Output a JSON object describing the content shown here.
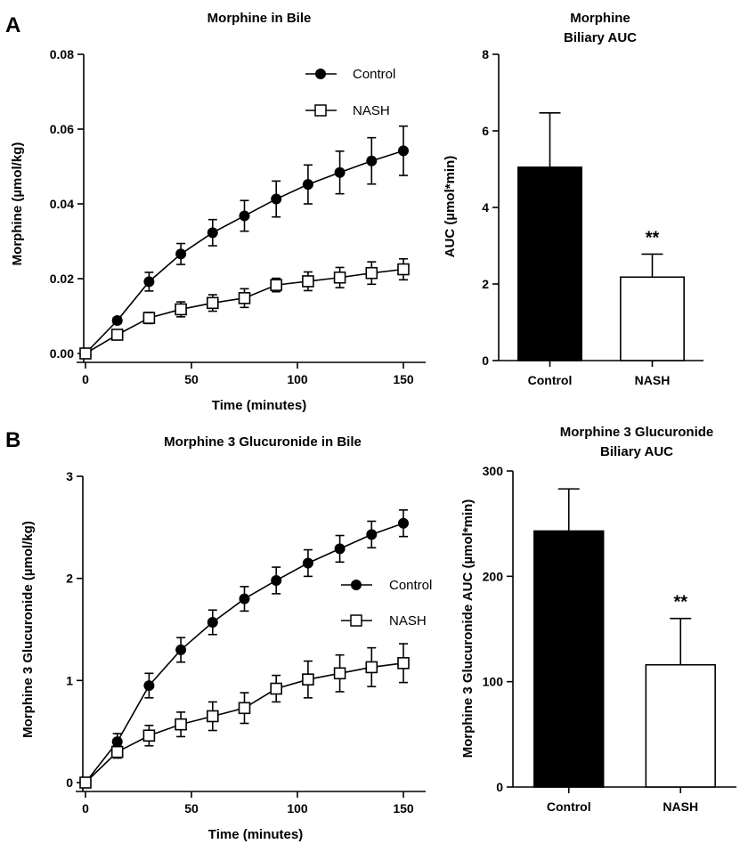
{
  "panels": [
    {
      "letter": "A"
    },
    {
      "letter": "B"
    }
  ],
  "chart_data": [
    {
      "id": "A-line",
      "type": "line",
      "panel": "A",
      "title": "Morphine in Bile",
      "xlabel": "Time (minutes)",
      "ylabel": "Morphine (µmol/kg)",
      "xlim": [
        0,
        155
      ],
      "ylim": [
        0,
        0.08
      ],
      "xticks": [
        0,
        50,
        100,
        150
      ],
      "xtick_labels": [
        "0",
        "50",
        "100",
        "150"
      ],
      "yticks": [
        0,
        0.02,
        0.04,
        0.06,
        0.08
      ],
      "ytick_labels": [
        "0.00",
        "0.02",
        "0.04",
        "0.06",
        "0.08"
      ],
      "legend_position": "top-center",
      "series": [
        {
          "name": "Control",
          "marker": "filled-circle",
          "x": [
            0,
            15,
            30,
            45,
            60,
            75,
            90,
            105,
            120,
            135,
            150
          ],
          "y": [
            0,
            0.0088,
            0.0192,
            0.0266,
            0.0323,
            0.0368,
            0.0413,
            0.0452,
            0.0484,
            0.0515,
            0.0542
          ],
          "err": [
            0,
            0.0008,
            0.0025,
            0.0028,
            0.0035,
            0.0041,
            0.0048,
            0.0052,
            0.0057,
            0.0062,
            0.0066
          ]
        },
        {
          "name": "NASH",
          "marker": "open-square",
          "x": [
            0,
            15,
            30,
            45,
            60,
            75,
            90,
            105,
            120,
            135,
            150
          ],
          "y": [
            0,
            0.005,
            0.0095,
            0.0118,
            0.0135,
            0.0148,
            0.0183,
            0.0193,
            0.0203,
            0.0215,
            0.0225
          ],
          "err": [
            0,
            0.0008,
            0.0015,
            0.002,
            0.0022,
            0.0025,
            0.0018,
            0.0025,
            0.0027,
            0.003,
            0.0028
          ]
        }
      ]
    },
    {
      "id": "A-bar",
      "type": "bar",
      "panel": "A",
      "title": "Morphine",
      "subtitle": "Biliary AUC",
      "xlabel": "",
      "ylabel": "AUC (µmol*min)",
      "ylim": [
        0,
        8
      ],
      "yticks": [
        0,
        2,
        4,
        6,
        8
      ],
      "categories": [
        "Control",
        "NASH"
      ],
      "values": [
        5.05,
        2.18
      ],
      "errors": [
        1.42,
        0.6
      ],
      "bar_colors": [
        "#000000",
        "#ffffff"
      ],
      "annotations": [
        "",
        "**"
      ]
    },
    {
      "id": "B-line",
      "type": "line",
      "panel": "B",
      "title": "Morphine 3 Glucuronide in Bile",
      "xlabel": "Time (minutes)",
      "ylabel": "Morphine 3 Glucuronide (µmol/kg)",
      "xlim": [
        0,
        155
      ],
      "ylim": [
        0,
        3
      ],
      "xticks": [
        0,
        50,
        100,
        150
      ],
      "xtick_labels": [
        "0",
        "50",
        "100",
        "150"
      ],
      "yticks": [
        0,
        1,
        2,
        3
      ],
      "ytick_labels": [
        "0",
        "1",
        "2",
        "3"
      ],
      "legend_position": "center-right",
      "series": [
        {
          "name": "Control",
          "marker": "filled-circle",
          "x": [
            0,
            15,
            30,
            45,
            60,
            75,
            90,
            105,
            120,
            135,
            150
          ],
          "y": [
            0,
            0.4,
            0.95,
            1.3,
            1.57,
            1.8,
            1.98,
            2.15,
            2.29,
            2.43,
            2.54
          ],
          "err": [
            0,
            0.08,
            0.12,
            0.12,
            0.12,
            0.12,
            0.13,
            0.13,
            0.13,
            0.13,
            0.13
          ]
        },
        {
          "name": "NASH",
          "marker": "open-square",
          "x": [
            0,
            15,
            30,
            45,
            60,
            75,
            90,
            105,
            120,
            135,
            150
          ],
          "y": [
            0,
            0.3,
            0.46,
            0.57,
            0.65,
            0.73,
            0.92,
            1.01,
            1.07,
            1.13,
            1.17
          ],
          "err": [
            0,
            0.06,
            0.1,
            0.12,
            0.14,
            0.15,
            0.13,
            0.18,
            0.18,
            0.19,
            0.19
          ]
        }
      ]
    },
    {
      "id": "B-bar",
      "type": "bar",
      "panel": "B",
      "title": "Morphine 3 Glucuronide",
      "subtitle": "Biliary AUC",
      "xlabel": "",
      "ylabel": "Morphine 3  Glucuronide AUC (µmol*min)",
      "ylim": [
        0,
        300
      ],
      "yticks": [
        0,
        100,
        200,
        300
      ],
      "categories": [
        "Control",
        "NASH"
      ],
      "values": [
        243,
        116
      ],
      "errors": [
        40,
        44
      ],
      "bar_colors": [
        "#000000",
        "#ffffff"
      ],
      "annotations": [
        "",
        "**"
      ]
    }
  ]
}
